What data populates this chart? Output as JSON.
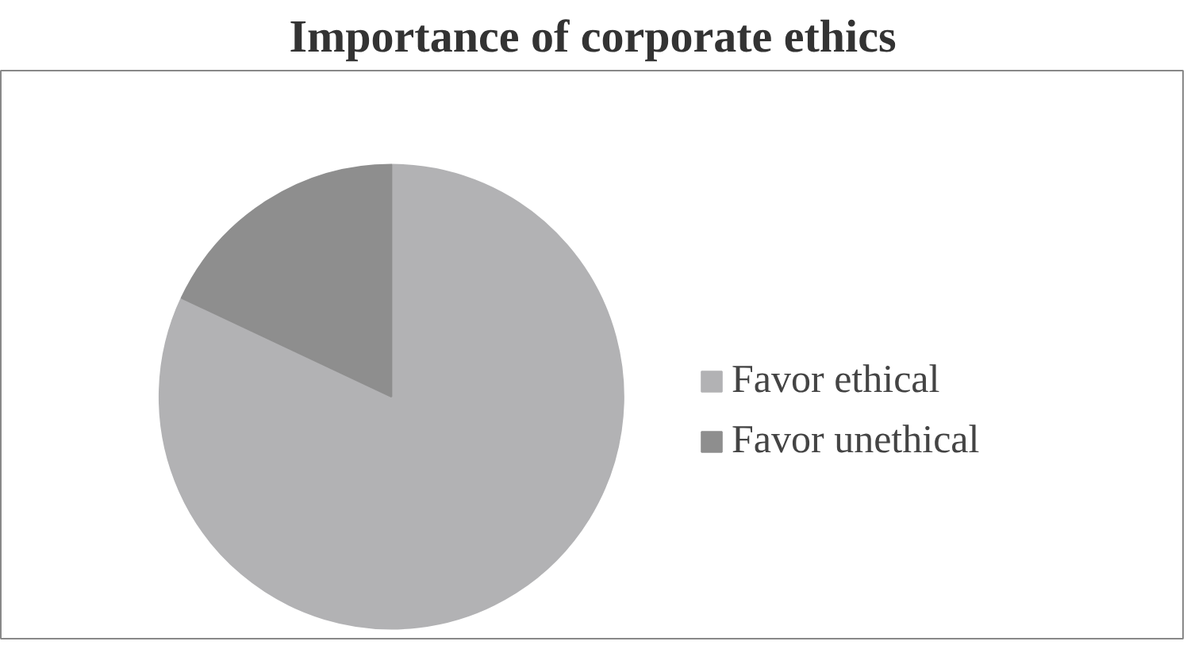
{
  "chart_data": {
    "type": "pie",
    "title": "Importance of corporate ethics",
    "categories": [
      "Favor ethical",
      "Favor unethical"
    ],
    "values": [
      82,
      18
    ],
    "colors": [
      "#b2b2b4",
      "#8e8e8e"
    ],
    "legend": "right"
  }
}
